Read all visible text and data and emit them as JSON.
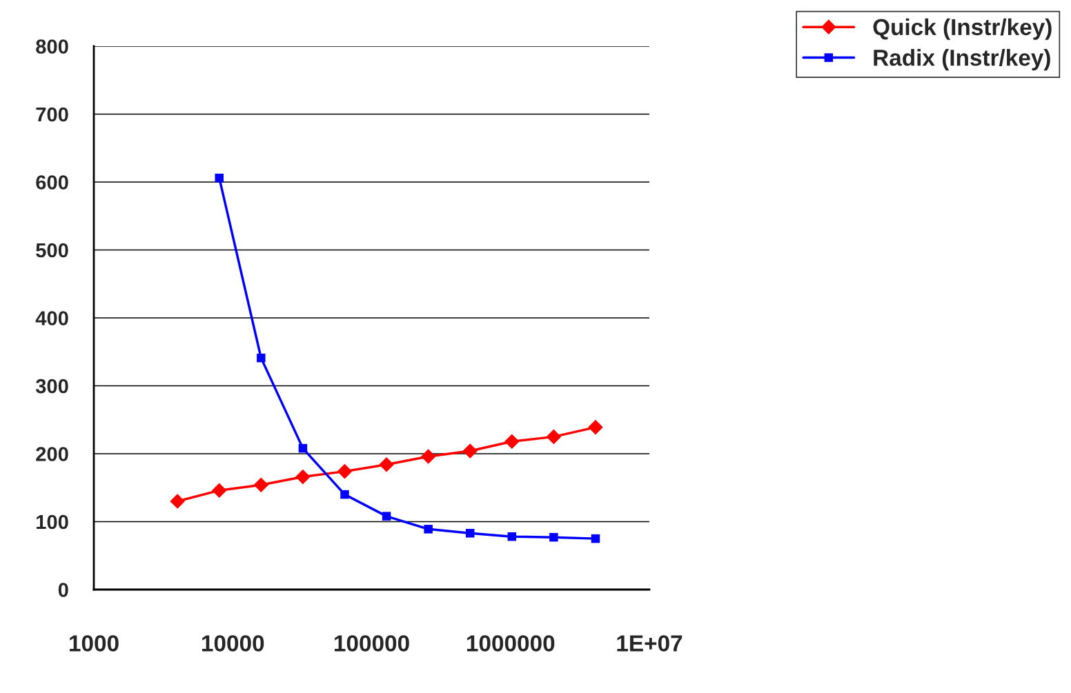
{
  "chart_data": {
    "type": "line",
    "log": "x",
    "x": [
      4000,
      8000,
      16000,
      32000,
      64000,
      128000,
      256000,
      512000,
      1024000,
      2048000,
      4096000
    ],
    "series": [
      {
        "name": "Quick (Instr/key)",
        "color": "#ff0000",
        "marker": "diamond",
        "values": [
          130,
          146,
          154,
          166,
          174,
          184,
          196,
          204,
          218,
          225,
          239
        ]
      },
      {
        "name": "Radix (Instr/key)",
        "color": "#0000ff",
        "marker": "square",
        "values": [
          null,
          606,
          341,
          208,
          140,
          108,
          89,
          83,
          78,
          77,
          75
        ]
      }
    ],
    "xlim": [
      1000,
      10000000
    ],
    "xticks": [
      1000,
      10000,
      100000,
      {
        "value": 1000000,
        "label": "1000000"
      },
      {
        "value": 10000000,
        "label": "1E+07"
      }
    ],
    "ylim": [
      0,
      800
    ],
    "yticks": [
      0,
      100,
      200,
      300,
      400,
      500,
      600,
      700,
      800
    ],
    "grid": "y",
    "legend": "top right",
    "line_style": "solid"
  }
}
